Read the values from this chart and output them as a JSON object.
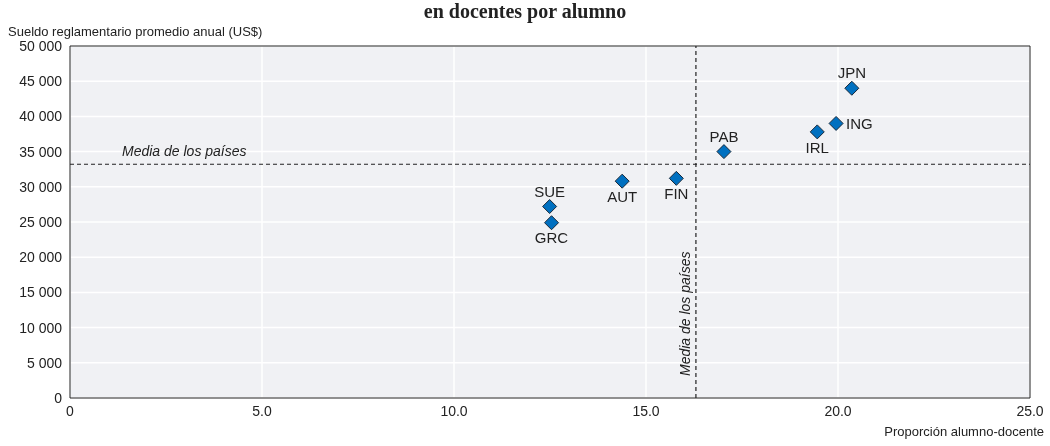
{
  "chart_data": {
    "type": "scatter",
    "title": "en docentes por alumno",
    "xlabel": "Proporción alumno-docente",
    "ylabel": "Sueldo reglamentario promedio anual (US$)",
    "x": [
      20.36,
      19.95,
      19.46,
      17.03,
      15.79,
      14.38,
      12.49,
      12.54
    ],
    "series": [
      {
        "color": "#0070c0",
        "values": [
          44000,
          39000,
          37800,
          35000,
          31200,
          30800,
          27200,
          24900
        ]
      }
    ],
    "annotations": [
      {
        "text": "JPN",
        "x": 20.36,
        "y": 44000
      },
      {
        "text": "ING",
        "x": 19.95,
        "y": 39000
      },
      {
        "text": "IRL",
        "x": 19.46,
        "y": 37800
      },
      {
        "text": "PAB",
        "x": 17.03,
        "y": 35000
      },
      {
        "text": "FIN",
        "x": 15.79,
        "y": 31200
      },
      {
        "text": "AUT",
        "x": 14.38,
        "y": 30800
      },
      {
        "text": "SUE",
        "x": 12.49,
        "y": 27200
      },
      {
        "text": "GRC",
        "x": 12.54,
        "y": 24900
      }
    ],
    "ref_lines": [
      {
        "axis": "y",
        "value": 33200,
        "label": "Media de los países",
        "line_style": "dashed",
        "color": "#222222"
      },
      {
        "axis": "x",
        "value": 16.3,
        "label": "Media de los países",
        "line_style": "dashed",
        "color": "#222222"
      }
    ],
    "xlim": [
      0,
      25
    ],
    "xticks": [
      0,
      {
        "value": 5,
        "label": "5.0"
      },
      {
        "value": 10,
        "label": "10.0"
      },
      {
        "value": 15,
        "label": "15.0"
      },
      {
        "value": 20,
        "label": "20.0"
      },
      {
        "value": 25,
        "label": "25.0"
      }
    ],
    "ylim": [
      0,
      50000
    ],
    "yticks": [
      0,
      {
        "value": 5000,
        "label": "5 000"
      },
      {
        "value": 10000,
        "label": "10 000"
      },
      {
        "value": 15000,
        "label": "15 000"
      },
      {
        "value": 20000,
        "label": "20 000"
      },
      {
        "value": 25000,
        "label": "25 000"
      },
      {
        "value": 30000,
        "label": "30 000"
      },
      {
        "value": 35000,
        "label": "35 000"
      },
      {
        "value": 40000,
        "label": "40 000"
      },
      {
        "value": 45000,
        "label": "45 000"
      },
      {
        "value": 50000,
        "label": "50 000"
      }
    ],
    "grid": true,
    "marker": "diamond"
  }
}
